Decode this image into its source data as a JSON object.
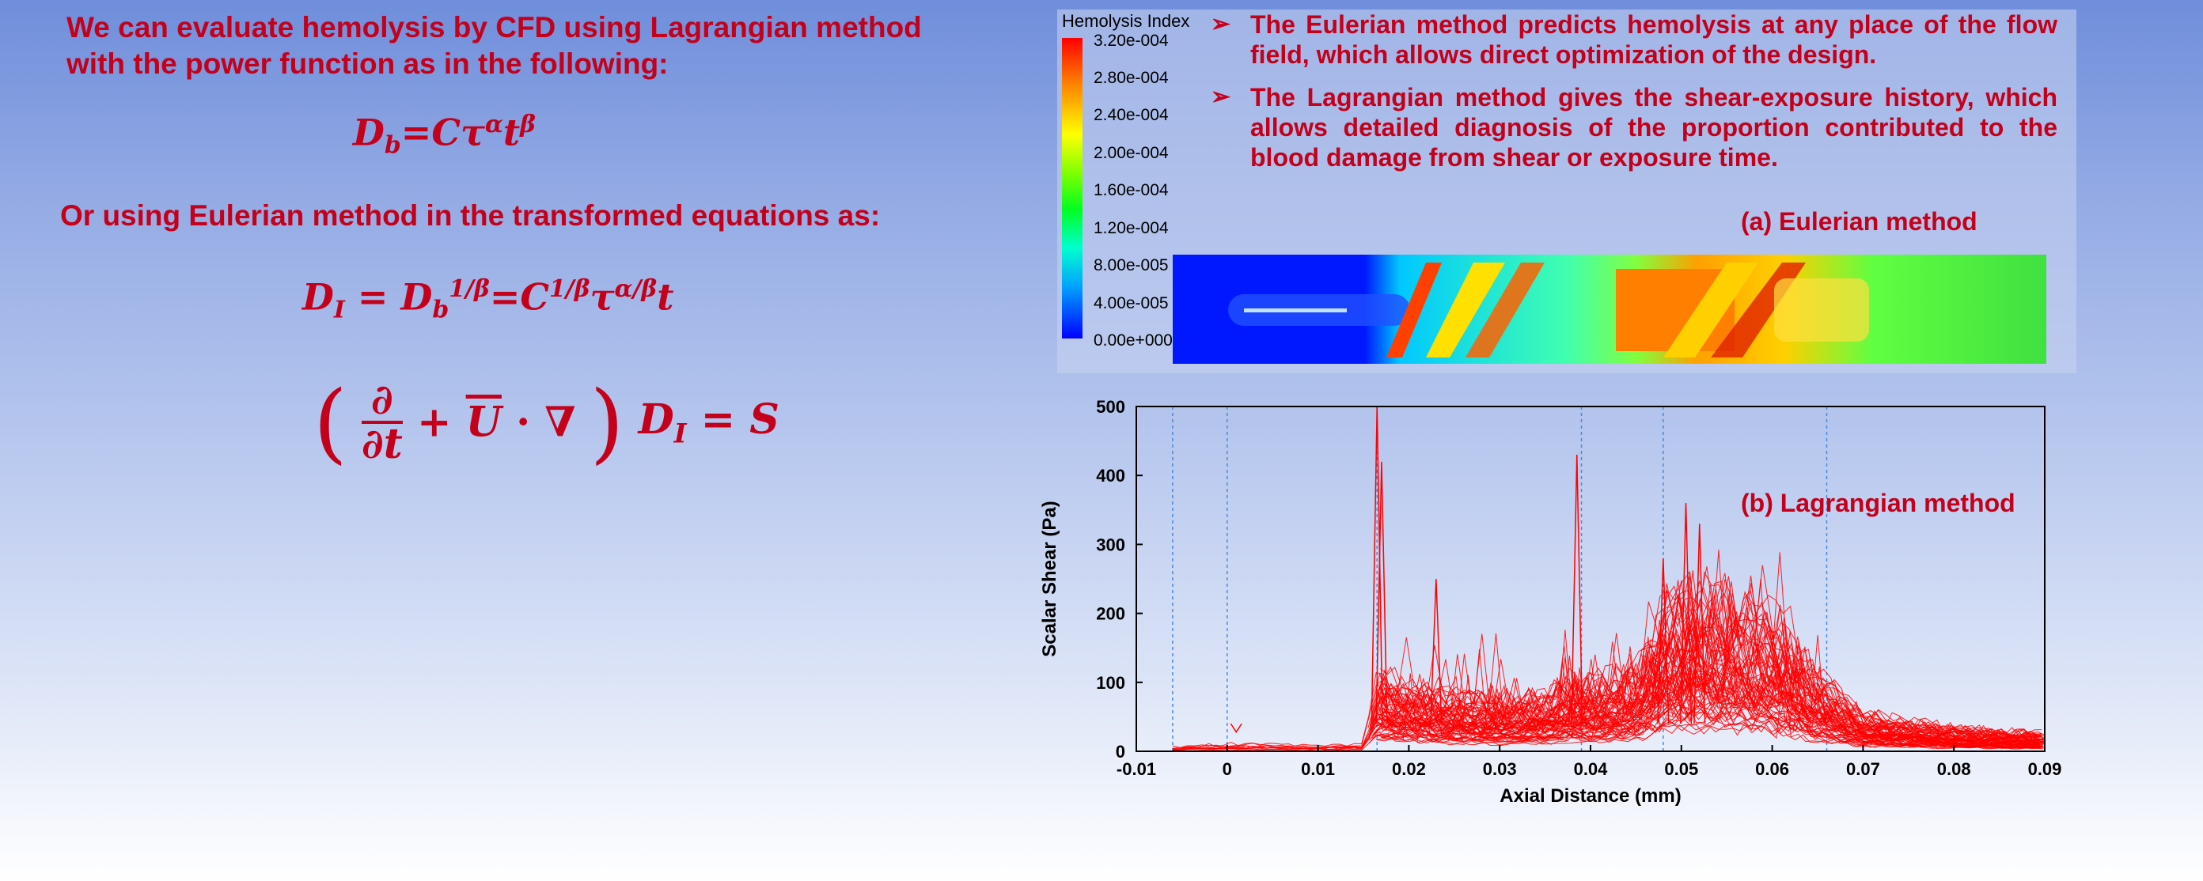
{
  "left": {
    "intro": "We can evaluate hemolysis by CFD using Lagrangian method with the power function as in the following:",
    "eq1": "D_b = Cτ^α t^β",
    "line2": "Or using Eulerian method in the transformed equations as:",
    "eq2": "D_I = D_b^{1/β} = C^{1/β} τ^{α/β} t",
    "eq3": "(∂/∂t + Ū·∇) D_I = S"
  },
  "right": {
    "bullets": [
      "The Eulerian method predicts hemolysis at any place of the flow field, which allows direct optimization of the design.",
      "The Lagrangian method gives the shear-exposure history, which allows detailed diagnosis of the proportion contributed to the blood damage from shear or exposure time."
    ],
    "bullet_icon": "arrow-bullet-icon",
    "colorbar": {
      "title": "Hemolysis Index",
      "labels": [
        "3.20e-004",
        "2.80e-004",
        "2.40e-004",
        "2.00e-004",
        "1.60e-004",
        "1.20e-004",
        "8.00e-005",
        "4.00e-005",
        "0.00e+000"
      ]
    },
    "caption_a": "(a)  Eulerian method",
    "caption_b": "(b)  Lagrangian method"
  },
  "chart_data": {
    "type": "line",
    "xlabel": "Axial Distance (mm)",
    "ylabel": "Scalar Shear (Pa)",
    "xlim": [
      -0.01,
      0.09
    ],
    "ylim": [
      0,
      500
    ],
    "xticks": [
      "-0.01",
      "0",
      "0.01",
      "0.02",
      "0.03",
      "0.04",
      "0.05",
      "0.06",
      "0.07",
      "0.08",
      "0.09"
    ],
    "yticks": [
      "0",
      "100",
      "200",
      "300",
      "400",
      "500"
    ],
    "guide_lines_x": [
      -0.006,
      0.0,
      0.0165,
      0.039,
      0.048,
      0.066,
      0.09
    ],
    "series_color": "#ff0000",
    "envelope": {
      "x": [
        -0.006,
        0.0,
        0.005,
        0.01,
        0.015,
        0.0165,
        0.02,
        0.025,
        0.03,
        0.035,
        0.038,
        0.04,
        0.045,
        0.048,
        0.052,
        0.056,
        0.06,
        0.065,
        0.07,
        0.08,
        0.09
      ],
      "y": [
        5,
        8,
        8,
        6,
        8,
        80,
        70,
        60,
        55,
        60,
        75,
        70,
        90,
        150,
        170,
        160,
        140,
        80,
        40,
        25,
        20
      ]
    },
    "peaks": [
      {
        "x": 0.0165,
        "y": 500
      },
      {
        "x": 0.017,
        "y": 420
      },
      {
        "x": 0.0385,
        "y": 430
      },
      {
        "x": 0.0505,
        "y": 360
      },
      {
        "x": 0.052,
        "y": 330
      },
      {
        "x": 0.048,
        "y": 280
      },
      {
        "x": 0.023,
        "y": 250
      },
      {
        "x": 0.001,
        "y": 28
      }
    ],
    "grid": false
  },
  "colors": {
    "accent": "#c4001a",
    "series": "#ff0000"
  }
}
